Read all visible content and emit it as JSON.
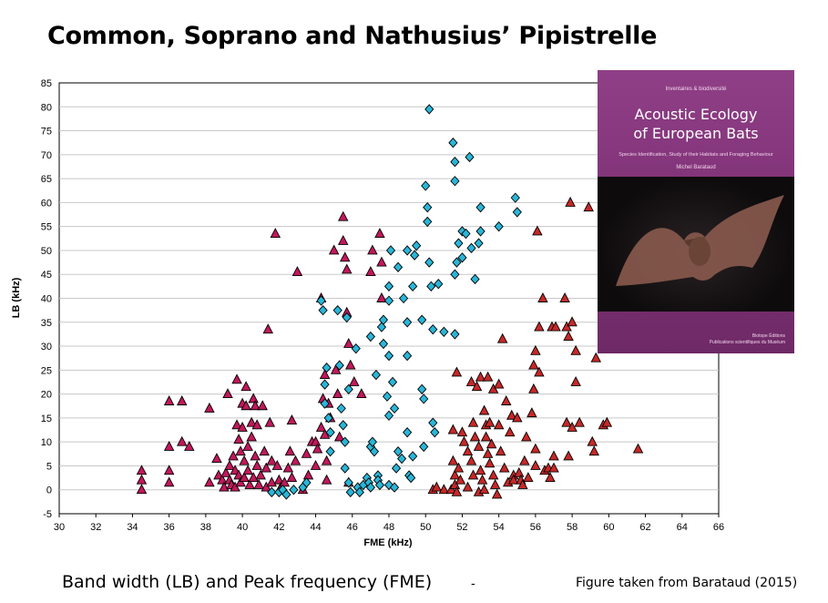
{
  "title": "Common, Soprano and Nathusius’ Pipistrelle",
  "caption": "Band width (LB) and Peak frequency (FME)",
  "separator": "-",
  "source": "Figure taken from Barataud (2015)",
  "book": {
    "publisher": "Inventaires & biodiversité",
    "title_line1": "Acoustic Ecology",
    "title_line2": "of European Bats",
    "subtitle": "Species Identification, Study of their Habitats and Foraging Behaviour",
    "author": "Michel Barataud",
    "publisher_bottom_line1": "Biotope Éditions",
    "publisher_bottom_line2": "Publications scientifiques du Muséum"
  },
  "chart_data": {
    "type": "scatter",
    "xlabel": "FME (kHz)",
    "ylabel": "LB (kHz)",
    "xlim": [
      30,
      66
    ],
    "ylim": [
      -5,
      85
    ],
    "xticks": [
      30,
      32,
      34,
      36,
      38,
      40,
      42,
      44,
      46,
      48,
      50,
      52,
      54,
      56,
      58,
      60,
      62,
      64,
      66
    ],
    "yticks": [
      -5,
      0,
      5,
      10,
      15,
      20,
      25,
      30,
      35,
      40,
      45,
      50,
      55,
      60,
      65,
      70,
      75,
      80,
      85
    ],
    "grid": "horizontal",
    "series": [
      {
        "marker": "triangle",
        "color": "#c2185b",
        "points": [
          [
            34.5,
            4
          ],
          [
            34.5,
            2
          ],
          [
            34.5,
            0
          ],
          [
            36,
            18.5
          ],
          [
            36.7,
            18.5
          ],
          [
            36,
            9
          ],
          [
            36.7,
            10
          ],
          [
            37.1,
            9
          ],
          [
            36,
            4
          ],
          [
            36,
            1.5
          ],
          [
            38.2,
            17
          ],
          [
            38.2,
            1.5
          ],
          [
            38.6,
            6.5
          ],
          [
            38.7,
            3
          ],
          [
            38.9,
            2
          ],
          [
            39,
            0.5
          ],
          [
            39.1,
            3.5
          ],
          [
            39.2,
            20
          ],
          [
            39.3,
            5
          ],
          [
            39.3,
            2
          ],
          [
            39.4,
            1
          ],
          [
            39.5,
            7
          ],
          [
            39.6,
            4
          ],
          [
            39.6,
            0.5
          ],
          [
            39.7,
            23
          ],
          [
            39.7,
            13.5
          ],
          [
            39.8,
            10.5
          ],
          [
            39.8,
            3
          ],
          [
            39.9,
            8
          ],
          [
            39.9,
            1.5
          ],
          [
            40,
            18
          ],
          [
            40,
            13
          ],
          [
            40.1,
            6
          ],
          [
            40.1,
            2.5
          ],
          [
            40.2,
            21.5
          ],
          [
            40.2,
            17.5
          ],
          [
            40.3,
            9
          ],
          [
            40.3,
            4
          ],
          [
            40.4,
            1
          ],
          [
            40.5,
            14
          ],
          [
            40.5,
            11
          ],
          [
            40.6,
            19
          ],
          [
            40.6,
            2.5
          ],
          [
            40.7,
            17.5
          ],
          [
            40.7,
            7
          ],
          [
            40.8,
            13.5
          ],
          [
            40.8,
            5
          ],
          [
            40.9,
            1
          ],
          [
            41,
            3
          ],
          [
            41.1,
            17.5
          ],
          [
            41.2,
            8
          ],
          [
            41.3,
            4.5
          ],
          [
            41.3,
            0.5
          ],
          [
            41.4,
            33.5
          ],
          [
            41.5,
            14
          ],
          [
            41.6,
            6
          ],
          [
            41.6,
            1.5
          ],
          [
            41.8,
            53.5
          ],
          [
            41.9,
            5
          ],
          [
            42,
            2
          ],
          [
            42.1,
            0.5
          ],
          [
            42.3,
            1.5
          ],
          [
            42.5,
            4.5
          ],
          [
            42.6,
            8
          ],
          [
            42.7,
            14.5
          ],
          [
            42.7,
            2.5
          ],
          [
            42.9,
            6
          ],
          [
            43,
            45.5
          ],
          [
            43.3,
            0
          ],
          [
            43.5,
            7.5
          ],
          [
            43.6,
            3
          ],
          [
            43.8,
            10
          ],
          [
            44,
            10
          ],
          [
            44,
            5
          ],
          [
            44.1,
            8.5
          ],
          [
            44.3,
            40
          ],
          [
            44.3,
            13
          ],
          [
            44.4,
            19
          ],
          [
            44.5,
            24
          ],
          [
            44.5,
            11.5
          ],
          [
            44.6,
            6
          ],
          [
            44.6,
            2
          ],
          [
            44.7,
            18
          ],
          [
            44.8,
            15
          ],
          [
            45,
            50
          ],
          [
            45.1,
            25
          ],
          [
            45.2,
            20
          ],
          [
            45.3,
            11
          ],
          [
            45.5,
            57
          ],
          [
            45.5,
            52
          ],
          [
            45.6,
            48.5
          ],
          [
            45.7,
            46
          ],
          [
            45.7,
            37
          ],
          [
            45.8,
            30.5
          ],
          [
            45.8,
            1.5
          ],
          [
            45.9,
            26
          ],
          [
            46.1,
            22.5
          ],
          [
            46.5,
            20
          ],
          [
            47,
            45.5
          ],
          [
            47.1,
            50
          ],
          [
            47.5,
            53.5
          ],
          [
            47.6,
            47.5
          ],
          [
            47.6,
            40
          ]
        ]
      },
      {
        "marker": "diamond",
        "color": "#29b6d8",
        "points": [
          [
            41.6,
            -0.5
          ],
          [
            42,
            -0.5
          ],
          [
            42.2,
            0
          ],
          [
            42.4,
            -1
          ],
          [
            42.8,
            0
          ],
          [
            43.3,
            0.5
          ],
          [
            43.5,
            1.5
          ],
          [
            44.3,
            39.5
          ],
          [
            44.4,
            37.5
          ],
          [
            44.5,
            22
          ],
          [
            44.5,
            18
          ],
          [
            44.6,
            25.5
          ],
          [
            44.7,
            15
          ],
          [
            44.8,
            12
          ],
          [
            44.8,
            8
          ],
          [
            45.2,
            37.5
          ],
          [
            45.3,
            26
          ],
          [
            45.4,
            17
          ],
          [
            45.5,
            13.5
          ],
          [
            45.6,
            10
          ],
          [
            45.6,
            4.5
          ],
          [
            45.7,
            36
          ],
          [
            45.8,
            21
          ],
          [
            45.8,
            1.5
          ],
          [
            45.9,
            -0.5
          ],
          [
            46.2,
            29.5
          ],
          [
            46.3,
            0.5
          ],
          [
            46.4,
            -0.5
          ],
          [
            46.6,
            1
          ],
          [
            46.8,
            2.5
          ],
          [
            46.9,
            1.5
          ],
          [
            47,
            0.5
          ],
          [
            47,
            9
          ],
          [
            47,
            32
          ],
          [
            47.1,
            10
          ],
          [
            47.2,
            8
          ],
          [
            47.3,
            24
          ],
          [
            47.4,
            3
          ],
          [
            47.4,
            2
          ],
          [
            47.5,
            1
          ],
          [
            47.6,
            34
          ],
          [
            47.7,
            35.5
          ],
          [
            47.7,
            30.5
          ],
          [
            47.9,
            19.5
          ],
          [
            48,
            42.5
          ],
          [
            48,
            39.5
          ],
          [
            48,
            28
          ],
          [
            48,
            15.5
          ],
          [
            48,
            1
          ],
          [
            48.1,
            50
          ],
          [
            48.2,
            22.5
          ],
          [
            48.3,
            17
          ],
          [
            48.3,
            0.5
          ],
          [
            48.4,
            4.5
          ],
          [
            48.5,
            8
          ],
          [
            48.5,
            46.5
          ],
          [
            48.7,
            6.5
          ],
          [
            48.8,
            40
          ],
          [
            49,
            50
          ],
          [
            49,
            35
          ],
          [
            49,
            28
          ],
          [
            49,
            12
          ],
          [
            49.1,
            3
          ],
          [
            49.2,
            2.5
          ],
          [
            49.3,
            42.5
          ],
          [
            49.3,
            7
          ],
          [
            49.4,
            49
          ],
          [
            49.5,
            51
          ],
          [
            49.8,
            35.5
          ],
          [
            49.8,
            21
          ],
          [
            49.9,
            19
          ],
          [
            49.9,
            9
          ],
          [
            50,
            63.5
          ],
          [
            50.1,
            59
          ],
          [
            50.1,
            56
          ],
          [
            50.2,
            79.5
          ],
          [
            50.2,
            47.5
          ],
          [
            50.3,
            42.5
          ],
          [
            50.4,
            33.5
          ],
          [
            50.4,
            14
          ],
          [
            50.5,
            12
          ],
          [
            50.7,
            43
          ],
          [
            51,
            33
          ],
          [
            51.5,
            72.5
          ],
          [
            51.6,
            68.5
          ],
          [
            51.6,
            64.5
          ],
          [
            51.6,
            45
          ],
          [
            51.6,
            32.5
          ],
          [
            51.7,
            47.5
          ],
          [
            51.8,
            51.5
          ],
          [
            52,
            54
          ],
          [
            52,
            48.5
          ],
          [
            52.2,
            53.5
          ],
          [
            52.4,
            69.5
          ],
          [
            52.5,
            50.5
          ],
          [
            52.7,
            44
          ],
          [
            52.9,
            51.5
          ],
          [
            53,
            59
          ],
          [
            53,
            54
          ],
          [
            54,
            55
          ],
          [
            54.9,
            61
          ],
          [
            55,
            58
          ]
        ]
      },
      {
        "marker": "triangle",
        "color": "#c62828",
        "points": [
          [
            50.4,
            0
          ],
          [
            50.6,
            0.5
          ],
          [
            51,
            0
          ],
          [
            51.4,
            0
          ],
          [
            51.5,
            6
          ],
          [
            51.5,
            12.5
          ],
          [
            51.6,
            3
          ],
          [
            51.6,
            1
          ],
          [
            51.7,
            24.5
          ],
          [
            51.7,
            -0.5
          ],
          [
            51.8,
            4.5
          ],
          [
            51.9,
            2
          ],
          [
            52,
            12
          ],
          [
            52.1,
            10
          ],
          [
            52.3,
            8
          ],
          [
            52.3,
            0.5
          ],
          [
            52.5,
            22.5
          ],
          [
            52.5,
            6
          ],
          [
            52.6,
            14
          ],
          [
            52.6,
            3
          ],
          [
            52.7,
            11
          ],
          [
            52.8,
            21.5
          ],
          [
            52.9,
            9
          ],
          [
            52.9,
            -0.5
          ],
          [
            53,
            23.5
          ],
          [
            53,
            4
          ],
          [
            53.1,
            2
          ],
          [
            53.2,
            16.5
          ],
          [
            53.2,
            0
          ],
          [
            53.3,
            13.5
          ],
          [
            53.3,
            11
          ],
          [
            53.4,
            23.5
          ],
          [
            53.4,
            7.5
          ],
          [
            53.5,
            14
          ],
          [
            53.5,
            5.5
          ],
          [
            53.6,
            9.5
          ],
          [
            53.7,
            21
          ],
          [
            53.7,
            3
          ],
          [
            53.8,
            1
          ],
          [
            53.9,
            -1
          ],
          [
            54,
            22
          ],
          [
            54,
            13.5
          ],
          [
            54.1,
            8
          ],
          [
            54.2,
            31.5
          ],
          [
            54.3,
            4.5
          ],
          [
            54.4,
            18.5
          ],
          [
            54.5,
            1.5
          ],
          [
            54.6,
            12
          ],
          [
            54.7,
            15.5
          ],
          [
            54.8,
            3
          ],
          [
            54.8,
            2
          ],
          [
            55,
            15
          ],
          [
            55.1,
            3.5
          ],
          [
            55.2,
            2
          ],
          [
            55.3,
            1
          ],
          [
            55.4,
            6
          ],
          [
            55.5,
            11
          ],
          [
            55.6,
            2.5
          ],
          [
            55.8,
            16
          ],
          [
            55.9,
            21
          ],
          [
            55.9,
            26
          ],
          [
            56,
            29
          ],
          [
            56,
            8.5
          ],
          [
            56,
            5
          ],
          [
            56.1,
            54
          ],
          [
            56.2,
            34
          ],
          [
            56.2,
            24.5
          ],
          [
            56.4,
            40
          ],
          [
            56.5,
            4
          ],
          [
            56.7,
            4.5
          ],
          [
            56.8,
            2.5
          ],
          [
            56.9,
            34
          ],
          [
            57,
            7
          ],
          [
            57.1,
            34
          ],
          [
            57,
            4.5
          ],
          [
            57.6,
            40
          ],
          [
            57.7,
            34
          ],
          [
            57.7,
            14
          ],
          [
            57.8,
            32
          ],
          [
            57.8,
            7
          ],
          [
            57.9,
            60
          ],
          [
            58,
            35
          ],
          [
            58,
            13
          ],
          [
            58.2,
            29
          ],
          [
            58.2,
            22.5
          ],
          [
            58.4,
            14
          ],
          [
            58.9,
            59
          ],
          [
            59.1,
            10
          ],
          [
            59.2,
            8
          ],
          [
            59.3,
            27.5
          ],
          [
            59.7,
            13.5
          ],
          [
            59.9,
            14
          ],
          [
            61.6,
            8.5
          ]
        ]
      }
    ]
  }
}
